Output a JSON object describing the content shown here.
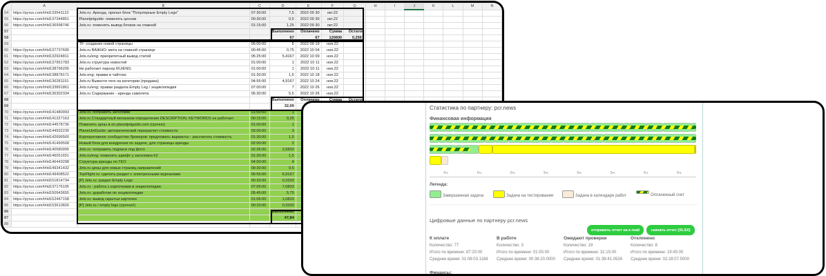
{
  "spreadsheet": {
    "columns": [
      "",
      "A",
      "B",
      "C",
      "D",
      "E",
      "F",
      "G",
      "H",
      "I",
      "J",
      "K",
      "L",
      "M",
      "N"
    ],
    "selected_column": "J",
    "rows": [
      {
        "n": "54",
        "kind": "gray",
        "cells": [
          "https://pyrus.com/t#id133541122",
          "Jets.ru: Аренда, пропал блок \"Популярные Empty Legs\"",
          "07:30:00",
          "7,5",
          "2022 09 30",
          "окт.22",
          ""
        ]
      },
      {
        "n": "55",
        "kind": "gray",
        "cells": [
          "https://pyrus.com/t#id137344851",
          "Planetjetguide: поменять ценник",
          "00:30:00",
          "0,5",
          "2022 09 30",
          "окт.22",
          ""
        ]
      },
      {
        "n": "56",
        "kind": "gray",
        "cells": [
          "https://pyrus.com/t#id136998746",
          "Jets.ru: поменять вывод блоков на главной",
          "01:15:00",
          "1,25",
          "2022 09 30",
          "окт.22",
          ""
        ]
      },
      {
        "n": "57",
        "kind": "gray sum",
        "cells": [
          "",
          "",
          "",
          "Выполнено",
          "Оплачено",
          "Сумма",
          "Остаток"
        ]
      },
      {
        "n": "58",
        "kind": "gray sum",
        "cells": [
          "",
          "",
          "",
          "67",
          "67",
          "120600",
          "0,2567"
        ]
      },
      {
        "n": "59",
        "kind": "",
        "cells": [
          "",
          "TF: создание новой страницы",
          "05:00:00",
          "5",
          "2022 09 19",
          "ноя.22",
          ""
        ]
      },
      {
        "n": "60",
        "kind": "",
        "cells": [
          "https://pyrus.com/t#id137737690",
          "Jets.ru ВАЖНО: мета на главной странице",
          "00:45:00",
          "0,75",
          "2022 10 04",
          "ноя.22",
          ""
        ]
      },
      {
        "n": "61",
        "kind": "",
        "cells": [
          "https://pyrus.com/t#id132924811",
          "Jets.ru/eng: приоритетный вывод статей",
          "05:25:00",
          "5,4167",
          "2022 10 09",
          "ноя.22",
          ""
        ]
      },
      {
        "n": "62",
        "kind": "",
        "cells": [
          "https://pyrus.com/t#id137951783",
          "Jets.ru структура новостей",
          "01:00:00",
          "1",
          "2022 10 11",
          "ноя.22",
          ""
        ]
      },
      {
        "n": "63",
        "kind": "",
        "cells": [
          "https://pyrus.com/t#id138796205",
          "Не работает парсер RU/ENG",
          "01:00:00",
          "1",
          "2022 10 11",
          "ноя.22",
          ""
        ]
      },
      {
        "n": "64",
        "kind": "",
        "cells": [
          "https://pyrus.com/t#id138878171",
          "Jets.eng: правки в тайтлах",
          "01:30:00",
          "1,5",
          "2022 10 18",
          "ноя.22",
          ""
        ]
      },
      {
        "n": "65",
        "kind": "",
        "cells": [
          "https://pyrus.com/t#id136281191",
          "Jets.ru Вывести теги на категории (продажа)",
          "04:55:00",
          "4,9167",
          "2022 10 24",
          "ноя.22",
          ""
        ]
      },
      {
        "n": "66",
        "kind": "",
        "cells": [
          "https://pyrus.com/t#id133891861",
          "Jets.ru/eng: правки раздела Empty Leg / энциклопедия",
          "07:00:00",
          "7",
          "2022 10 26",
          "ноя.22",
          ""
        ]
      },
      {
        "n": "67",
        "kind": "",
        "cells": [
          "https://pyrus.com/t#id136302334",
          "Jets.ru Содержание - аренда самолета",
          "05:30:00",
          "5,5",
          "2022 10 26",
          "ноя.22",
          ""
        ]
      },
      {
        "n": "68",
        "kind": "sum",
        "cells": [
          "",
          "",
          "",
          "Выполнено",
          "Оплачено",
          "Сумма",
          "Остаток"
        ]
      },
      {
        "n": "69",
        "kind": "sum",
        "cells": [
          "",
          "",
          "",
          "32,09",
          "",
          "",
          ""
        ]
      },
      {
        "n": "70",
        "kind": "green",
        "cells": [
          "https://pyrus.com/t#id141480993",
          "Jets.ru: поправить заголовки",
          "01:00:00",
          "1",
          "",
          "",
          ""
        ]
      },
      {
        "n": "71",
        "kind": "green",
        "cells": [
          "https://pyrus.com/t#id141327163",
          "Jets.ru Стандартный механизм определения DESCRIPTION, KEYWORDS не работает",
          "00:15:00",
          "0,25",
          "",
          "",
          ""
        ]
      },
      {
        "n": "72",
        "kind": "green",
        "cells": [
          "https://pyrus.com/t#id144578736",
          "Поменять цены в en.planetjetguide.com (срочно)",
          "01:00:00",
          "1",
          "",
          "",
          ""
        ]
      },
      {
        "n": "73",
        "kind": "green",
        "cells": [
          "https://pyrus.com/t#id144932230",
          "PlanetJetGuide: автоматический перерасчет стоимости",
          "03:00:00",
          "3",
          "",
          "",
          ""
        ]
      },
      {
        "n": "74",
        "kind": "green",
        "cells": [
          "https://pyrus.com/t#id142696560",
          "Корпоративное сообщество брокеров: предложить варианты - рассчитать стоимость",
          "01:30:00",
          "1,5",
          "",
          "",
          ""
        ]
      },
      {
        "n": "75",
        "kind": "green",
        "cells": [
          "https://pyrus.com/t#id141499508",
          "Новый блок для внедрения по задаче, для страницы аренды",
          "02:00:00",
          "2",
          "",
          "",
          ""
        ]
      },
      {
        "n": "76",
        "kind": "green",
        "cells": [
          "https://pyrus.com/t#id140580995",
          "Jets.ru: поправить подписи под фото",
          "02:35:00",
          "2,5833",
          "",
          "",
          ""
        ]
      },
      {
        "n": "77",
        "kind": "green",
        "cells": [
          "https://pyrus.com/t#id146051651",
          "Jets.ru/eng: поменять шрифт у заголовка h2",
          "01:30:00",
          "1,5",
          "",
          "",
          ""
        ]
      },
      {
        "n": "78",
        "kind": "green",
        "cells": [
          "https://pyrus.com/t#id146443298",
          "Структура аренды по ГЕО",
          "04:00:00",
          "4",
          "",
          "",
          ""
        ]
      },
      {
        "n": "79",
        "kind": "green",
        "cells": [
          "https://pyrus.com/t#id149341432",
          "Jets.ru цены для новых страниц направлений",
          "09:30:00",
          "9,5",
          "",
          "",
          ""
        ]
      },
      {
        "n": "80",
        "kind": "green",
        "cells": [
          "https://pyrus.com/t#id149408522",
          "TopFlight.ru: сделать раздел с электронными журналами",
          "06:55:00",
          "6,9167",
          "",
          "",
          ""
        ]
      },
      {
        "n": "81",
        "kind": "green",
        "cells": [
          "https://pyrus.com/t#id151814734",
          "[P] Jets.ru: раздел Empty Legs",
          "00:20:00",
          "0,3333",
          "",
          "",
          ""
        ]
      },
      {
        "n": "82",
        "kind": "green",
        "cells": [
          "https://pyrus.com/t#id137176105",
          "Jets.ru - работа с карточками в энциклопедии.",
          "07:05:00",
          "7,0833",
          "",
          "",
          ""
        ]
      },
      {
        "n": "83",
        "kind": "green",
        "cells": [
          "https://pyrus.com/t#id150943655",
          "Jets.ru: доработки по энциклопедии",
          "05:45:00",
          "5,75",
          "",
          "",
          ""
        ]
      },
      {
        "n": "84",
        "kind": "green",
        "cells": [
          "https://pyrus.com/t#id152447158",
          "Jets.ru: вывод скрытых карточек",
          "01:05:00",
          "1,0833",
          "",
          "",
          ""
        ]
      },
      {
        "n": "85",
        "kind": "green",
        "cells": [
          "https://pyrus.com/t#id153610826",
          "[P] Jets.ru / empty legs (срочно!)",
          "00:20:00",
          "0,3333",
          "",
          "",
          ""
        ]
      },
      {
        "n": "86",
        "kind": "green sum",
        "cells": [
          "",
          "",
          "",
          "Выполнено",
          "К оплате",
          "",
          ""
        ]
      },
      {
        "n": "87",
        "kind": "green sum",
        "cells": [
          "",
          "",
          "",
          "47,84",
          "",
          "",
          ""
        ]
      },
      {
        "n": "88",
        "kind": "",
        "cells": [
          "",
          "",
          "",
          "",
          "",
          "",
          ""
        ]
      }
    ]
  },
  "stats": {
    "title": "Статистика по партнеру: pcr.news",
    "finance_heading": "Финансовая информация",
    "colors": {
      "done": "#90ee90",
      "testing": "#ffff00",
      "calendar": "#faebd7",
      "paid_dark": "#137a13",
      "paid_light": "#ffff00",
      "button": "#2ecc40"
    },
    "timeline": {
      "hours_per_row": 40,
      "rows": [
        {
          "paid_hours": 40,
          "segments": [
            {
              "status": "done",
              "hours": 1.5
            },
            {
              "status": "done",
              "hours": 1
            },
            {
              "status": "done",
              "hours": 1.1
            },
            {
              "status": "done",
              "hours": 5.4
            },
            {
              "status": "done",
              "hours": 1.1
            },
            {
              "status": "done",
              "hours": 3.4
            },
            {
              "status": "done",
              "hours": 10.5
            },
            {
              "status": "done",
              "hours": 4.6
            },
            {
              "status": "done",
              "hours": 0.5
            },
            {
              "status": "done",
              "hours": 1
            },
            {
              "status": "done",
              "hours": 2.4
            },
            {
              "status": "done",
              "hours": 2.5
            },
            {
              "status": "done",
              "hours": 4.3
            },
            {
              "status": "done",
              "hours": 0.7
            }
          ]
        },
        {
          "paid_hours": 40,
          "segments": [
            {
              "status": "done",
              "hours": 1.5
            },
            {
              "status": "done",
              "hours": 1
            },
            {
              "status": "done",
              "hours": 1.1
            },
            {
              "status": "done",
              "hours": 4.7
            },
            {
              "status": "done",
              "hours": 1.5
            },
            {
              "status": "done",
              "hours": 2
            },
            {
              "status": "done",
              "hours": 4.9
            },
            {
              "status": "done",
              "hours": 1.5
            },
            {
              "status": "done",
              "hours": 1.9
            },
            {
              "status": "done",
              "hours": 4.6
            },
            {
              "status": "done",
              "hours": 1.4
            },
            {
              "status": "done",
              "hours": 13.9
            }
          ]
        },
        {
          "paid_hours": 6.1,
          "segments": [
            {
              "status": "done",
              "hours": 3.9
            },
            {
              "status": "done",
              "hours": 1.1
            },
            {
              "status": "done",
              "hours": 2.4
            },
            {
              "status": "testing",
              "hours": 2
            },
            {
              "status": "testing",
              "hours": 30.4
            },
            {
              "status": "testing",
              "hours": 0.2
            }
          ]
        },
        {
          "paid_hours": 0,
          "segments": [
            {
              "status": "testing",
              "hours": 1.8
            },
            {
              "status": "calendar",
              "hours": 1
            }
          ]
        }
      ],
      "axis_ticks": [
        "5ч.",
        "5ч.",
        "5ч.",
        "5ч.",
        "5ч.",
        "5ч.",
        "5ч.",
        "5ч."
      ]
    },
    "legend": {
      "title": "Легенда:",
      "items": [
        "Завершенная задача",
        "Задача на тестировании",
        "Задача в календаре работ",
        "Оплаченный счет"
      ]
    },
    "digital_heading": "Цифровые данные по партнеру pcr.news",
    "buttons": {
      "email": "отправить отчет на e-mail",
      "xlsx": "скачать отчет [XLSX]"
    },
    "columns": [
      {
        "title": "К оплате",
        "count": "Количество: 77",
        "total": "Итого по времени: 87:20:00",
        "avg": "Среднее время: 01:08:03.1168"
      },
      {
        "title": "В работе",
        "count": "Количество: 3",
        "total": "Итого по времени: 01:55:00",
        "avg": "Среднее время: 00:38:20.0000"
      },
      {
        "title": "Ожидают проверки",
        "count": "Количество: 19",
        "total": "Итого по времени: 31:15:00",
        "avg": "Среднее время: 01:38:41.0526"
      },
      {
        "title": "Отклонено",
        "count": "Количество: 8",
        "total": "Итого по времени: 19:45:00",
        "avg": "Среднее время: 02:28:07.5000"
      }
    ],
    "finance_label": "Финансы:"
  }
}
